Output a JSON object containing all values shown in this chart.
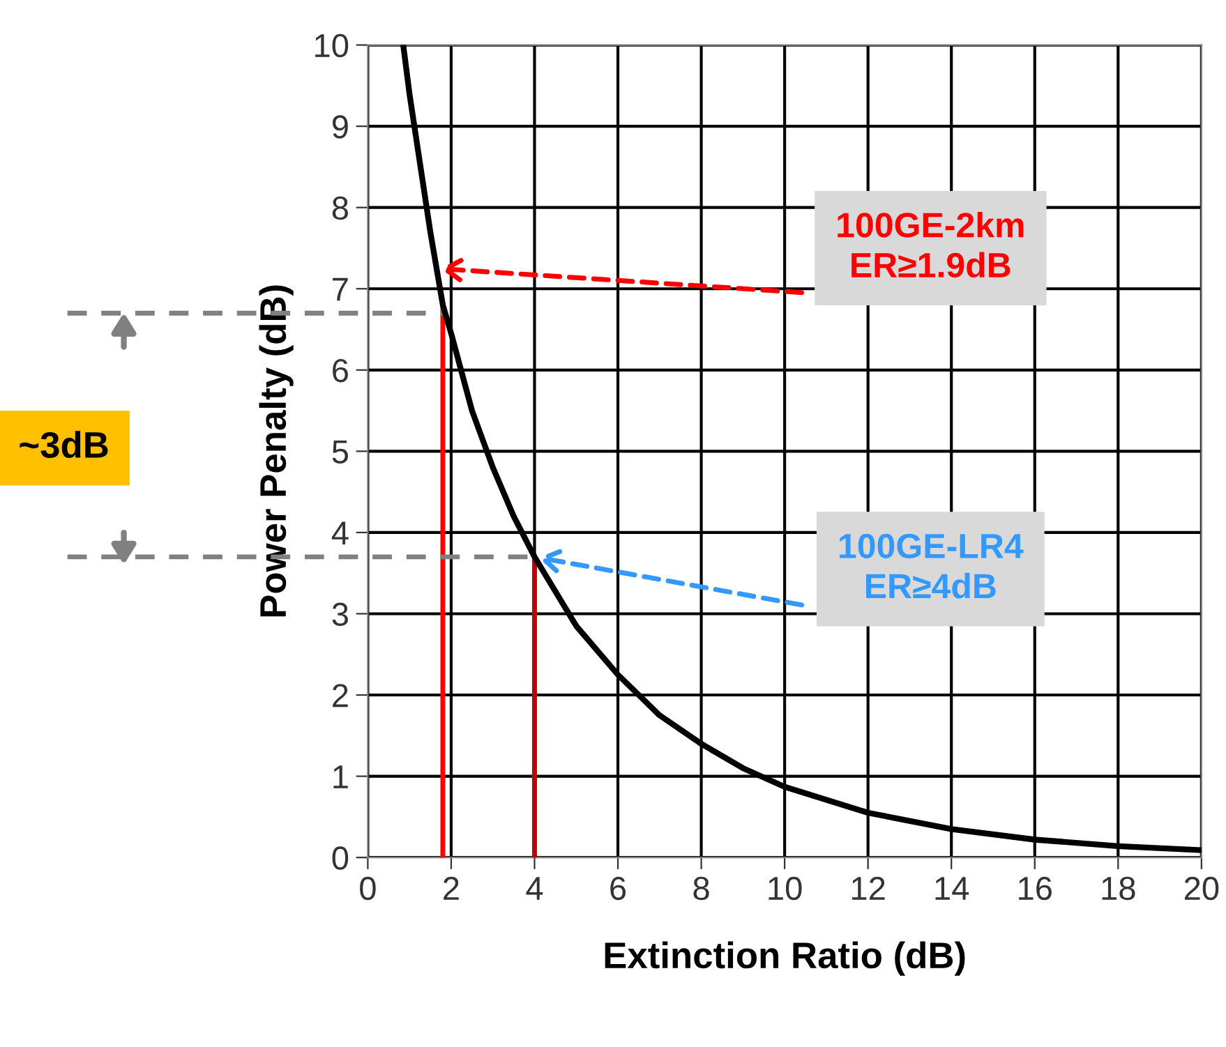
{
  "chart_data": {
    "type": "line",
    "xlabel": "Extinction Ratio (dB)",
    "ylabel": "Power Penalty (dB)",
    "xlim": [
      0,
      20
    ],
    "ylim": [
      0,
      10
    ],
    "xticks": [
      0,
      2,
      4,
      6,
      8,
      10,
      12,
      14,
      16,
      18,
      20
    ],
    "yticks": [
      0,
      1,
      2,
      3,
      4,
      5,
      6,
      7,
      8,
      9,
      10
    ],
    "grid": true,
    "marker": "none",
    "line_style": "solid",
    "series": [
      {
        "color": "#000000",
        "x": [
          0.85,
          1.0,
          1.5,
          1.65,
          1.8,
          2.0,
          2.5,
          3.0,
          3.5,
          4.0,
          5.0,
          6.0,
          7.0,
          8.0,
          9.0,
          10.0,
          12.0,
          14.0,
          16.0,
          18.0,
          20.0
        ],
        "values": [
          10.0,
          9.4,
          7.7,
          7.25,
          6.8,
          6.45,
          5.5,
          4.8,
          4.2,
          3.7,
          2.85,
          2.25,
          1.75,
          1.4,
          1.1,
          0.87,
          0.55,
          0.35,
          0.22,
          0.14,
          0.09
        ]
      }
    ],
    "ref_lines": [
      {
        "axis": "x",
        "value": 1.8,
        "color": "#ff0000",
        "line_style": "solid"
      },
      {
        "axis": "x",
        "value": 4.0,
        "color": "#c00000",
        "line_style": "solid"
      },
      {
        "axis": "y",
        "value": 6.7,
        "color": "#808080",
        "line_style": "dashed"
      },
      {
        "axis": "y",
        "value": 3.7,
        "color": "#808080",
        "line_style": "dashed"
      }
    ],
    "annotations": [
      {
        "text": "100GE-2km\nER≥1.9dB",
        "x": 1.65,
        "y": 7.25
      },
      {
        "text": "100GE-LR4\nER≥4dB",
        "x": 4.0,
        "y": 3.7
      },
      "~3dB"
    ]
  }
}
